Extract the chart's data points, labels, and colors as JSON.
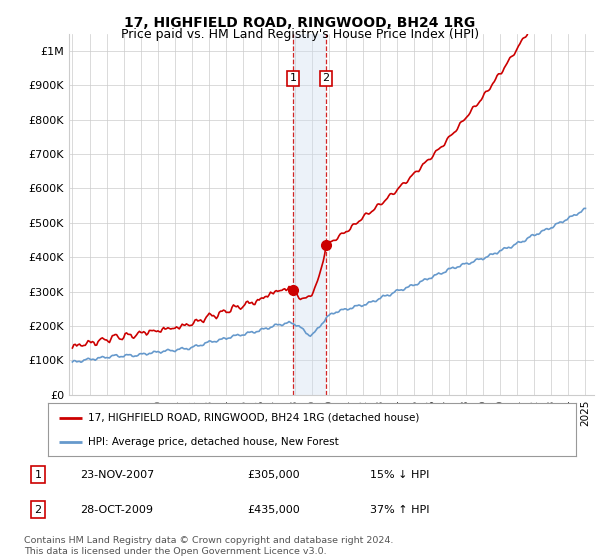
{
  "title": "17, HIGHFIELD ROAD, RINGWOOD, BH24 1RG",
  "subtitle": "Price paid vs. HM Land Registry's House Price Index (HPI)",
  "ylim": [
    0,
    1050000
  ],
  "yticks": [
    0,
    100000,
    200000,
    300000,
    400000,
    500000,
    600000,
    700000,
    800000,
    900000,
    1000000
  ],
  "ytick_labels": [
    "£0",
    "£100K",
    "£200K",
    "£300K",
    "£400K",
    "£500K",
    "£600K",
    "£700K",
    "£800K",
    "£900K",
    "£1M"
  ],
  "xlim_start": 1994.8,
  "xlim_end": 2025.5,
  "sale1_date_num": 2007.9,
  "sale1_price": 305000,
  "sale1_label": "1",
  "sale2_date_num": 2009.83,
  "sale2_price": 435000,
  "sale2_label": "2",
  "red_line_color": "#cc0000",
  "blue_line_color": "#6699cc",
  "shade_color": "#d0e0f0",
  "grid_color": "#cccccc",
  "background_color": "#ffffff",
  "legend_entry1": "17, HIGHFIELD ROAD, RINGWOOD, BH24 1RG (detached house)",
  "legend_entry2": "HPI: Average price, detached house, New Forest",
  "table_row1": [
    "1",
    "23-NOV-2007",
    "£305,000",
    "15% ↓ HPI"
  ],
  "table_row2": [
    "2",
    "28-OCT-2009",
    "£435,000",
    "37% ↑ HPI"
  ],
  "footer": "Contains HM Land Registry data © Crown copyright and database right 2024.\nThis data is licensed under the Open Government Licence v3.0.",
  "title_fontsize": 10,
  "subtitle_fontsize": 9,
  "axis_fontsize": 8
}
